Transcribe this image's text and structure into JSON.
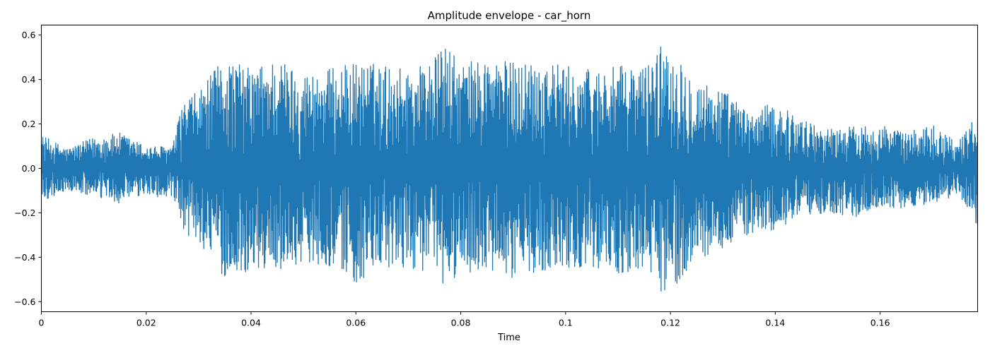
{
  "chart_data": {
    "type": "line",
    "title": "Amplitude envelope - car_horn",
    "xlabel": "Time",
    "ylabel": "",
    "xlim": [
      0,
      0.1786
    ],
    "ylim": [
      -0.645,
      0.645
    ],
    "x_ticks": [
      "0",
      "0.02",
      "0.04",
      "0.06",
      "0.08",
      "0.1",
      "0.12",
      "0.14",
      "0.16"
    ],
    "x_tick_values": [
      0,
      0.02,
      0.04,
      0.06,
      0.08,
      0.1,
      0.12,
      0.14,
      0.16
    ],
    "y_ticks": [
      "0.6",
      "0.4",
      "0.2",
      "0.0",
      "−0.2",
      "−0.4",
      "−0.6"
    ],
    "y_tick_values": [
      0.6,
      0.4,
      0.2,
      0.0,
      -0.2,
      -0.4,
      -0.6
    ],
    "grid": false,
    "series": [
      {
        "color": "#1f77b4",
        "envelope": {
          "x": [
            0,
            0.005,
            0.01,
            0.015,
            0.02,
            0.025,
            0.027,
            0.03,
            0.035,
            0.04,
            0.045,
            0.05,
            0.055,
            0.06,
            0.065,
            0.07,
            0.075,
            0.077,
            0.08,
            0.085,
            0.09,
            0.095,
            0.1,
            0.105,
            0.11,
            0.115,
            0.119,
            0.125,
            0.13,
            0.135,
            0.14,
            0.145,
            0.15,
            0.155,
            0.16,
            0.165,
            0.17,
            0.175,
            0.1786
          ],
          "max": [
            0.15,
            0.09,
            0.14,
            0.16,
            0.1,
            0.1,
            0.3,
            0.35,
            0.5,
            0.45,
            0.5,
            0.43,
            0.45,
            0.48,
            0.47,
            0.45,
            0.5,
            0.56,
            0.47,
            0.5,
            0.48,
            0.5,
            0.46,
            0.45,
            0.46,
            0.46,
            0.58,
            0.4,
            0.36,
            0.25,
            0.3,
            0.22,
            0.18,
            0.19,
            0.2,
            0.16,
            0.2,
            0.12,
            0.26
          ],
          "min": [
            -0.15,
            -0.1,
            -0.13,
            -0.16,
            -0.12,
            -0.14,
            -0.3,
            -0.33,
            -0.5,
            -0.46,
            -0.46,
            -0.42,
            -0.44,
            -0.52,
            -0.47,
            -0.45,
            -0.47,
            -0.56,
            -0.46,
            -0.48,
            -0.5,
            -0.46,
            -0.45,
            -0.44,
            -0.48,
            -0.46,
            -0.58,
            -0.42,
            -0.36,
            -0.3,
            -0.28,
            -0.22,
            -0.2,
            -0.22,
            -0.18,
            -0.18,
            -0.16,
            -0.12,
            -0.26
          ]
        }
      }
    ]
  }
}
